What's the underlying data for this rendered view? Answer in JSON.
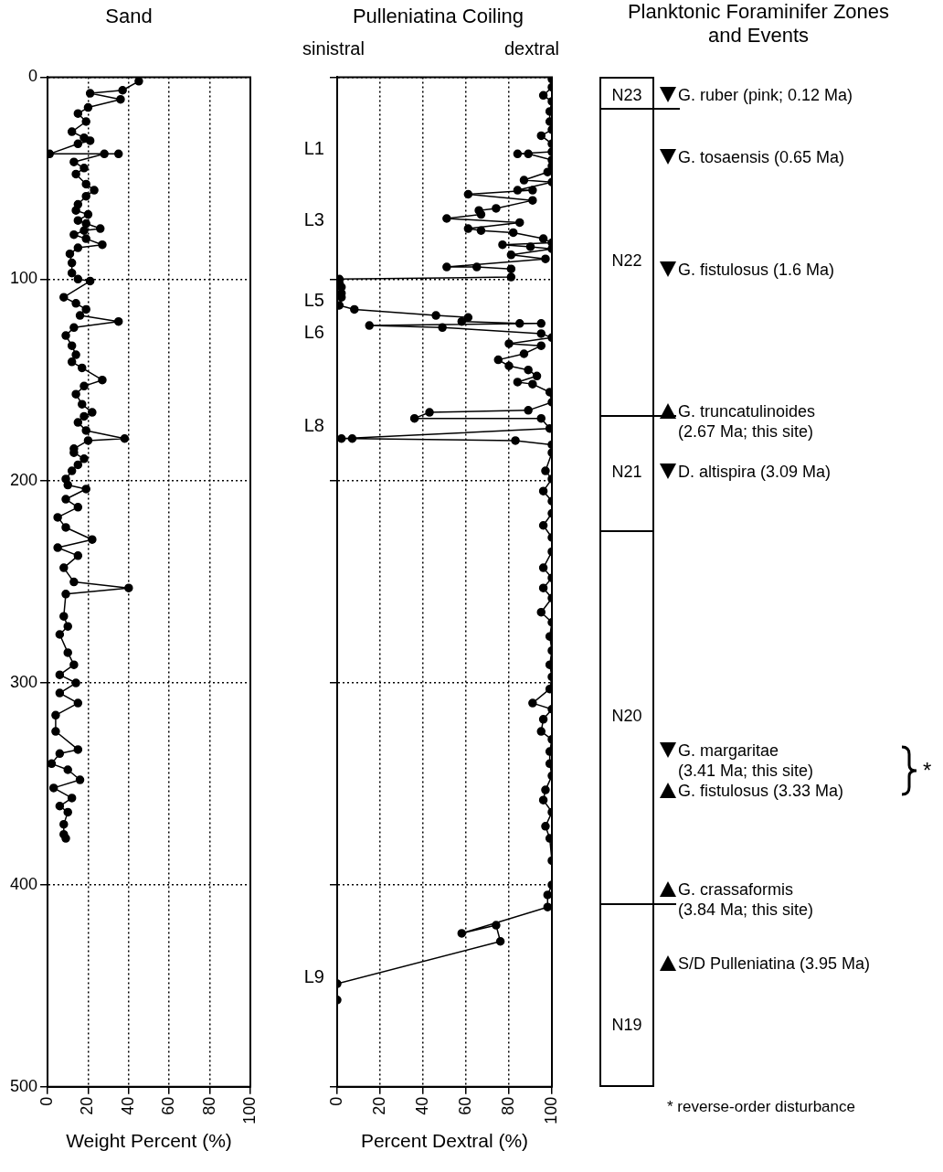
{
  "chart_data": [
    {
      "type": "line",
      "title": "Sand",
      "xlabel": "Weight Percent (%)",
      "xlim": [
        0,
        100
      ],
      "xticks": [
        0,
        20,
        40,
        60,
        80,
        100
      ],
      "ylim": [
        500,
        0
      ],
      "yticks": [
        0,
        100,
        200,
        300,
        400,
        500
      ],
      "grid": true,
      "legend": false,
      "marker": "circle",
      "line_style": "solid",
      "series": [
        {
          "color": "#000000",
          "x": [
            45,
            37,
            21,
            36,
            20,
            15,
            19,
            12,
            18,
            21,
            15,
            1,
            35,
            28,
            13,
            18,
            14,
            19,
            23,
            19,
            15,
            14,
            20,
            15,
            19,
            26,
            18,
            13,
            19,
            27,
            15,
            11,
            12,
            12,
            15,
            21,
            8,
            14,
            19,
            16,
            35,
            13,
            9,
            12,
            14,
            12,
            17,
            27,
            18,
            14,
            17,
            22,
            18,
            15,
            19,
            38,
            20,
            13,
            13,
            18,
            15,
            12,
            9,
            10,
            19,
            9,
            15,
            5,
            9,
            22,
            5,
            15,
            8,
            13,
            40,
            9,
            8,
            10,
            6,
            10,
            13,
            6,
            14,
            6,
            15,
            4,
            4,
            15,
            6,
            2,
            10,
            16,
            3,
            12,
            6,
            10,
            8,
            8,
            9
          ],
          "values": [
            2,
            6.5,
            8,
            11,
            15,
            18,
            22,
            27,
            30,
            31.5,
            33,
            38,
            38,
            38,
            42,
            45,
            48,
            53,
            56,
            59,
            63,
            66,
            68,
            71,
            72.5,
            75,
            76,
            78,
            80,
            83,
            84.5,
            87.5,
            92,
            97,
            100,
            101,
            109,
            112,
            115,
            118,
            121,
            124,
            128,
            133,
            137.5,
            141,
            144,
            150,
            153,
            157,
            162,
            166,
            168,
            171,
            175,
            179,
            180,
            184,
            186,
            189,
            192,
            195,
            199,
            202,
            204,
            209,
            213,
            218,
            223,
            229,
            233,
            237,
            243,
            250,
            253,
            256,
            267,
            272,
            276,
            285,
            291,
            296,
            300,
            305,
            310,
            316,
            324,
            333,
            335,
            340,
            343,
            348,
            352,
            357,
            361,
            364,
            370,
            375,
            377
          ]
        }
      ]
    },
    {
      "type": "line",
      "title": "Pulleniatina Coiling",
      "xlabel": "Percent Dextral (%)",
      "xlim": [
        0,
        100
      ],
      "xticks": [
        0,
        20,
        40,
        60,
        80,
        100
      ],
      "ylim": [
        500,
        0
      ],
      "yticks": [
        {
          "value": 0,
          "label": null
        },
        {
          "value": 100,
          "label": null
        },
        {
          "value": 200,
          "label": null
        },
        {
          "value": 300,
          "label": null
        },
        {
          "value": 400,
          "label": null
        },
        {
          "value": 500,
          "label": null
        }
      ],
      "tick_labels": "x",
      "grid": true,
      "legend": false,
      "marker": "circle",
      "line_style": "solid",
      "annotations": [
        "sinistral",
        "dextral",
        "L1",
        "L3",
        "L5",
        "L6",
        "L8",
        "L9"
      ],
      "series": [
        {
          "color": "#000000",
          "x": [
            100,
            100,
            96,
            100,
            99,
            99,
            100,
            95,
            100,
            100,
            84,
            89,
            100,
            100,
            98,
            87,
            100,
            84,
            91,
            61,
            91,
            74,
            66,
            67,
            51,
            85,
            61,
            67,
            82,
            96,
            100,
            77,
            90,
            100,
            81,
            97,
            51,
            65,
            81,
            81,
            1,
            1,
            2,
            2,
            2,
            1,
            8,
            46,
            61,
            58,
            85,
            95,
            15,
            49,
            95,
            100,
            80,
            95,
            87,
            75,
            80,
            89,
            93,
            84,
            91,
            99,
            100,
            89,
            43,
            36,
            95,
            99,
            2,
            7,
            83,
            100,
            100,
            97,
            100,
            96,
            100,
            100,
            96,
            100,
            100,
            96,
            100,
            96,
            100,
            95,
            100,
            99,
            100,
            99,
            100,
            99,
            91,
            100,
            96,
            95,
            100,
            99,
            99,
            100,
            97,
            96,
            100,
            97,
            99,
            100,
            100,
            98,
            98,
            58,
            74,
            76,
            0,
            0
          ],
          "values": [
            1,
            5,
            9,
            12,
            17,
            22,
            26,
            29,
            33,
            37,
            38,
            38,
            41,
            44,
            47,
            51,
            52,
            56,
            56,
            58,
            61,
            65,
            66,
            68,
            70,
            72,
            75,
            76,
            77,
            80,
            82,
            83,
            84,
            85,
            88,
            90,
            94,
            94,
            95,
            99,
            100,
            102,
            104,
            107,
            109,
            113,
            115,
            118,
            119,
            121,
            122,
            122,
            123,
            124,
            127,
            129,
            132,
            133,
            137,
            140,
            143,
            145,
            148,
            151,
            152,
            156,
            161,
            165,
            166,
            169,
            169,
            174,
            179,
            179,
            180,
            182,
            186,
            195,
            199,
            205,
            210,
            216,
            222,
            228,
            235,
            243,
            248,
            253,
            258,
            265,
            270,
            277,
            284,
            291,
            297,
            303,
            310,
            313,
            318,
            324,
            328,
            334,
            340,
            346,
            353,
            358,
            364,
            371,
            377,
            388,
            400,
            405,
            411,
            424,
            420,
            428,
            449,
            457
          ]
        }
      ]
    },
    {
      "type": "other",
      "title": "Planktonic Foraminifer Zones and Events",
      "annotations": [
        "N23",
        "N22",
        "N21",
        "N20",
        "N19",
        "G. ruber (pink; 0.12 Ma)",
        "G. tosaensis (0.65 Ma)",
        "G. fistulosus (1.6 Ma)",
        "G. truncatulinoides\n(2.67 Ma; this site)",
        "D. altispira (3.09 Ma)",
        "G. margaritae\n(3.41 Ma; this site)",
        "G. fistulosus (3.33 Ma)",
        "G. crassaformis\n(3.84 Ma; this site)",
        "S/D Pulleniatina  (3.95 Ma)",
        "*",
        "* reverse-order disturbance"
      ]
    }
  ]
}
